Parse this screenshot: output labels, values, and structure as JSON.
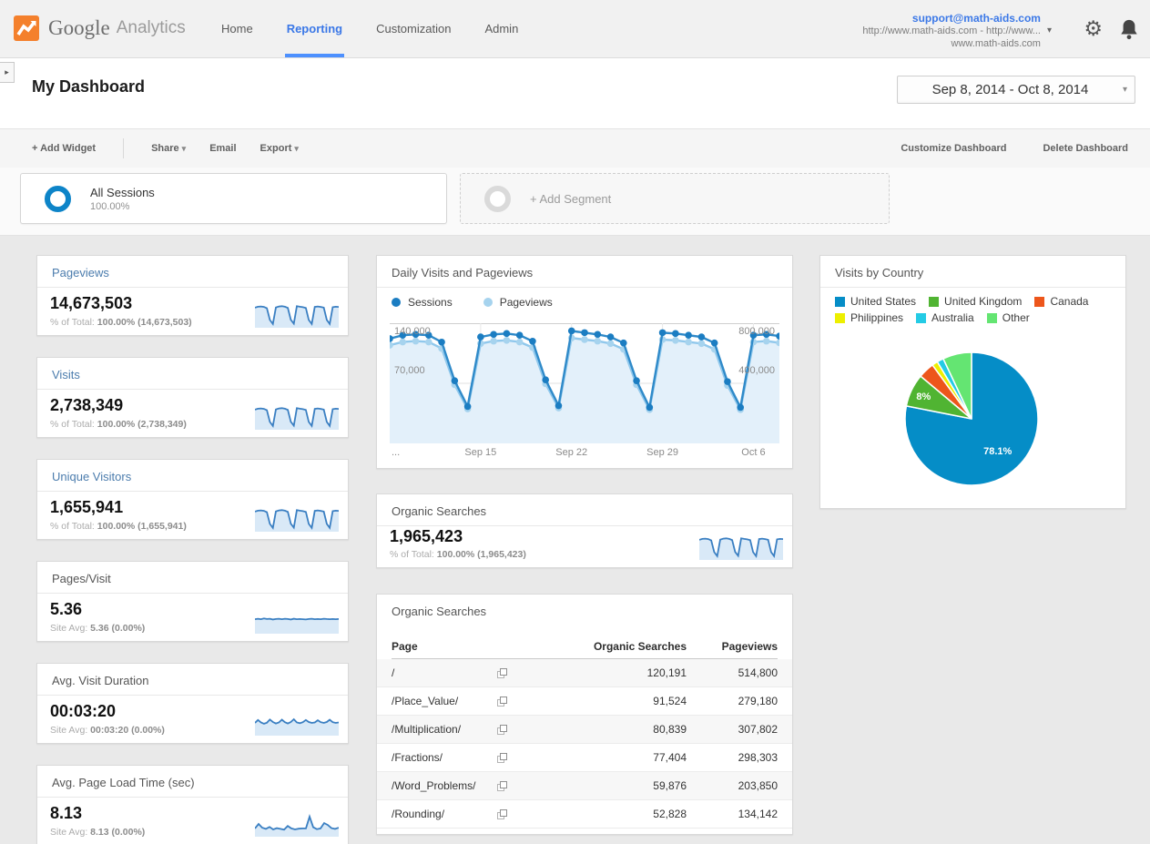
{
  "header": {
    "logo_brand": "Google",
    "logo_product": "Analytics",
    "nav": [
      {
        "label": "Home",
        "active": false
      },
      {
        "label": "Reporting",
        "active": true
      },
      {
        "label": "Customization",
        "active": false
      },
      {
        "label": "Admin",
        "active": false
      }
    ],
    "account": {
      "email": "support@math-aids.com",
      "property": "http://www.math-aids.com - http://www...",
      "view": "www.math-aids.com"
    }
  },
  "dashboard": {
    "title": "My Dashboard",
    "date_range": "Sep 8, 2014 - Oct 8, 2014"
  },
  "toolbar": {
    "add_widget": "+ Add Widget",
    "share": "Share",
    "email": "Email",
    "export": "Export",
    "customize": "Customize Dashboard",
    "delete": "Delete Dashboard"
  },
  "segments": {
    "all_sessions": {
      "label": "All Sessions",
      "percent": "100.00%"
    },
    "add_segment": "+ Add Segment"
  },
  "scorecards": [
    {
      "title": "Pageviews",
      "link": true,
      "value": "14,673,503",
      "sub_label": "% of Total:",
      "sub_value": "100.00% (14,673,503)",
      "spark": "weekly"
    },
    {
      "title": "Visits",
      "link": true,
      "value": "2,738,349",
      "sub_label": "% of Total:",
      "sub_value": "100.00% (2,738,349)",
      "spark": "weekly"
    },
    {
      "title": "Unique Visitors",
      "link": true,
      "value": "1,655,941",
      "sub_label": "% of Total:",
      "sub_value": "100.00% (1,655,941)",
      "spark": "weekly"
    },
    {
      "title": "Pages/Visit",
      "link": false,
      "value": "5.36",
      "sub_label": "Site Avg:",
      "sub_value": "5.36 (0.00%)",
      "spark": "flat"
    },
    {
      "title": "Avg. Visit Duration",
      "link": false,
      "value": "00:03:20",
      "sub_label": "Site Avg:",
      "sub_value": "00:03:20 (0.00%)",
      "spark": "bumps"
    },
    {
      "title": "Avg. Page Load Time (sec)",
      "link": false,
      "value": "8.13",
      "sub_label": "Site Avg:",
      "sub_value": "8.13 (0.00%)",
      "spark": "spiky"
    },
    {
      "title": "Organic Searches",
      "link": false,
      "value": "1,965,423",
      "sub_label": "% of Total:",
      "sub_value": "100.00% (1,965,423)",
      "spark": "weekly"
    }
  ],
  "sparklines": {
    "weekly": [
      78,
      82,
      83,
      81,
      76,
      28,
      12,
      79,
      83,
      84,
      82,
      77,
      29,
      13,
      84,
      82,
      80,
      77,
      28,
      12,
      81,
      83,
      81,
      78,
      28,
      12,
      80,
      82,
      81
    ],
    "flat": [
      55,
      57,
      55,
      58,
      56,
      57,
      54,
      56,
      57,
      55,
      57,
      56,
      54,
      57,
      55,
      56,
      55,
      54,
      56,
      57,
      55,
      56,
      55,
      57,
      56,
      55,
      56,
      55,
      56
    ],
    "bumps": [
      48,
      60,
      50,
      45,
      49,
      62,
      52,
      46,
      50,
      61,
      51,
      46,
      52,
      63,
      50,
      47,
      51,
      60,
      52,
      48,
      50,
      59,
      51,
      48,
      52,
      61,
      51,
      48,
      50
    ],
    "spiky": [
      30,
      48,
      33,
      28,
      36,
      26,
      31,
      28,
      25,
      40,
      30,
      26,
      29,
      30,
      30,
      78,
      35,
      27,
      30,
      52,
      44,
      31,
      28,
      33
    ]
  },
  "chart_data": [
    {
      "type": "line",
      "title": "Daily Visits and Pageviews",
      "x_range": [
        "Sep 8, 2014",
        "Oct 8, 2014"
      ],
      "x_interval": "daily",
      "x_ticks": [
        "...",
        "Sep 15",
        "Sep 22",
        "Sep 29",
        "Oct 6"
      ],
      "x_tick_index": [
        0,
        7,
        14,
        21,
        28
      ],
      "ylabels_left": [
        "140,000",
        "70,000"
      ],
      "ylabels_right": [
        "800,000",
        "400,000"
      ],
      "ylim_left": [
        0,
        140000
      ],
      "ylim_right": [
        0,
        800000
      ],
      "grid": true,
      "legend_position": "top",
      "series": [
        {
          "name": "Sessions",
          "axis": "left",
          "color": "#1b7dc2",
          "line_color": "#2f8ac9",
          "values": [
            122000,
            126000,
            127000,
            126000,
            118000,
            73000,
            43000,
            124000,
            127000,
            128000,
            126000,
            119000,
            74000,
            44000,
            131000,
            129000,
            127000,
            124000,
            117000,
            73000,
            42000,
            129000,
            128000,
            126000,
            124000,
            117000,
            72000,
            42000,
            126000,
            127000,
            125000
          ]
        },
        {
          "name": "Pageviews",
          "axis": "right",
          "color": "#a6d3ee",
          "line_color": "#90c8ec",
          "fill": "#e3f0fa",
          "values": [
            654000,
            675000,
            681000,
            675000,
            632000,
            391000,
            230000,
            665000,
            681000,
            686000,
            675000,
            638000,
            397000,
            236000,
            702000,
            691000,
            681000,
            665000,
            627000,
            391000,
            225000,
            691000,
            686000,
            675000,
            665000,
            627000,
            386000,
            225000,
            675000,
            681000,
            670000
          ]
        }
      ]
    },
    {
      "type": "pie",
      "title": "Visits by Country",
      "legend_position": "top",
      "slices": [
        {
          "label": "United States",
          "value": 78.1,
          "color": "#058DC7",
          "data_label": "78.1%",
          "label_r": 0.62
        },
        {
          "label": "United Kingdom",
          "value": 8.0,
          "color": "#50B432",
          "data_label": "8%",
          "label_r": 0.8
        },
        {
          "label": "Canada",
          "value": 3.9,
          "color": "#ED561B"
        },
        {
          "label": "Philippines",
          "value": 1.4,
          "color": "#EDEF00"
        },
        {
          "label": "Australia",
          "value": 1.6,
          "color": "#24CBE5"
        },
        {
          "label": "Other",
          "value": 7.0,
          "color": "#64E572"
        }
      ]
    },
    {
      "type": "table",
      "title": "Organic Searches",
      "columns": [
        "Page",
        "Organic Searches",
        "Pageviews"
      ],
      "rows": [
        {
          "page": "/",
          "organic_searches": "120,191",
          "pageviews": "514,800"
        },
        {
          "page": "/Place_Value/",
          "organic_searches": "91,524",
          "pageviews": "279,180"
        },
        {
          "page": "/Multiplication/",
          "organic_searches": "80,839",
          "pageviews": "307,802"
        },
        {
          "page": "/Fractions/",
          "organic_searches": "77,404",
          "pageviews": "298,303"
        },
        {
          "page": "/Word_Problems/",
          "organic_searches": "59,876",
          "pageviews": "203,850"
        },
        {
          "page": "/Rounding/",
          "organic_searches": "52,828",
          "pageviews": "134,142"
        }
      ]
    }
  ]
}
